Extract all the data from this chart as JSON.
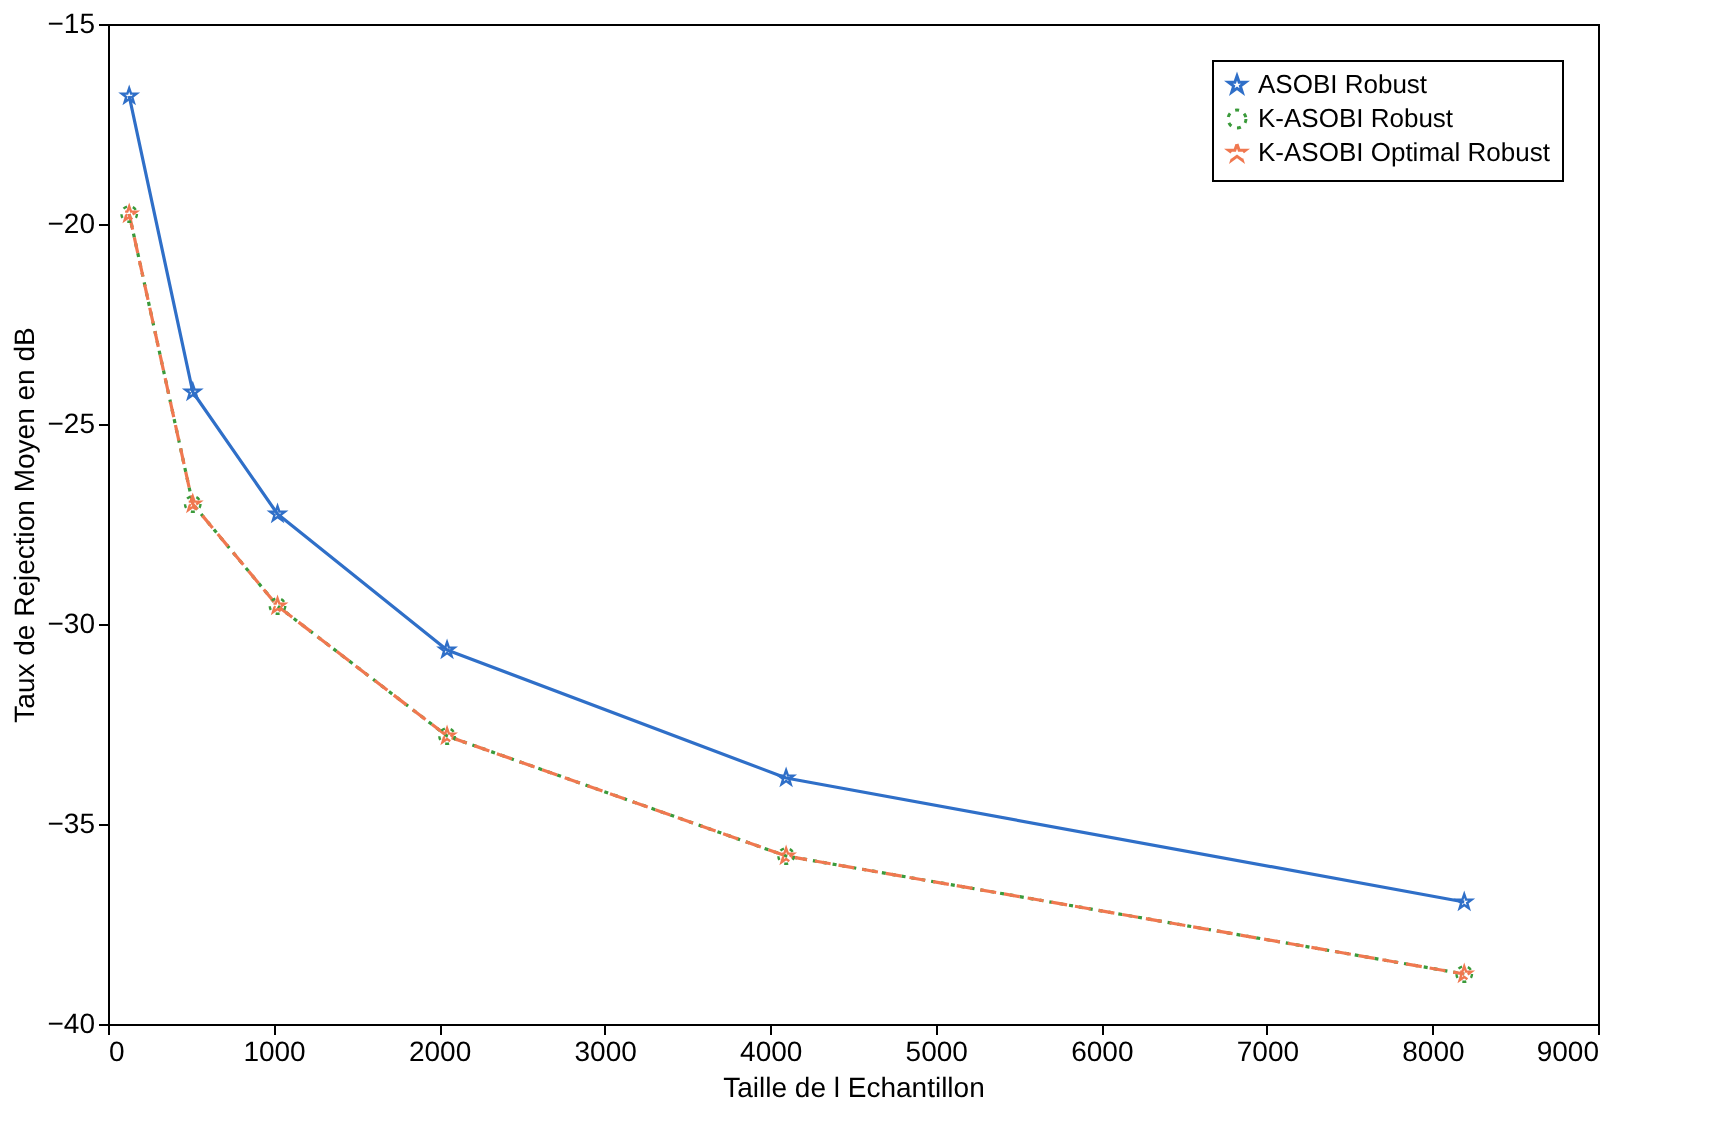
{
  "chart_data": {
    "type": "line",
    "xlabel": "Taille de l Echantillon",
    "ylabel": "Taux de Rejection Moyen en dB",
    "x": [
      128,
      512,
      1024,
      2048,
      4096,
      8192
    ],
    "series": [
      {
        "name": "ASOBI Robust",
        "color": "#2f6fc8",
        "values": [
          -16.8,
          -24.2,
          -27.25,
          -30.65,
          -33.85,
          -36.95
        ],
        "marker": "star",
        "line_style": "solid"
      },
      {
        "name": "K-ASOBI Robust",
        "color": "#3a9a3a",
        "values": [
          -19.75,
          -27.0,
          -29.55,
          -32.8,
          -35.8,
          -38.75
        ],
        "marker": "circle",
        "line_style": "dotted"
      },
      {
        "name": "K-ASOBI Optimal Robust",
        "color": "#f07850",
        "values": [
          -19.75,
          -27.0,
          -29.55,
          -32.8,
          -35.8,
          -38.75
        ],
        "marker": "star",
        "line_style": "dashed"
      }
    ],
    "xlim": [
      0,
      9000
    ],
    "xticks": [
      0,
      1000,
      2000,
      3000,
      4000,
      5000,
      6000,
      7000,
      8000,
      9000
    ],
    "ylim": [
      -40,
      -15
    ],
    "yticks": [
      -40,
      -35,
      -30,
      -25,
      -20,
      -15
    ],
    "grid": false,
    "legend": "top right"
  }
}
